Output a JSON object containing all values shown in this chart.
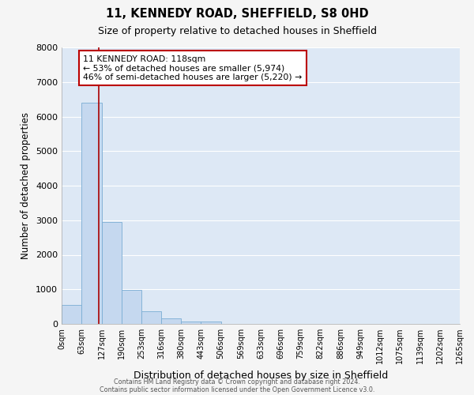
{
  "title": "11, KENNEDY ROAD, SHEFFIELD, S8 0HD",
  "subtitle": "Size of property relative to detached houses in Sheffield",
  "xlabel": "Distribution of detached houses by size in Sheffield",
  "ylabel": "Number of detached properties",
  "bar_color": "#c5d8ef",
  "bar_edge_color": "#7aadd4",
  "background_color": "#dde8f5",
  "grid_color": "#ffffff",
  "fig_background": "#f5f5f5",
  "bin_edges": [
    0,
    63,
    127,
    190,
    253,
    316,
    380,
    443,
    506,
    569,
    633,
    696,
    759,
    822,
    886,
    949,
    1012,
    1075,
    1139,
    1202,
    1265
  ],
  "bin_labels": [
    "0sqm",
    "63sqm",
    "127sqm",
    "190sqm",
    "253sqm",
    "316sqm",
    "380sqm",
    "443sqm",
    "506sqm",
    "569sqm",
    "633sqm",
    "696sqm",
    "759sqm",
    "822sqm",
    "886sqm",
    "949sqm",
    "1012sqm",
    "1075sqm",
    "1139sqm",
    "1202sqm",
    "1265sqm"
  ],
  "bar_heights": [
    550,
    6400,
    2950,
    975,
    360,
    155,
    70,
    60,
    0,
    0,
    0,
    0,
    0,
    0,
    0,
    0,
    0,
    0,
    0,
    0
  ],
  "property_size": 118,
  "vline_color": "#aa0000",
  "annotation_box_edge_color": "#bb0000",
  "annotation_text_line1": "11 KENNEDY ROAD: 118sqm",
  "annotation_text_line2": "← 53% of detached houses are smaller (5,974)",
  "annotation_text_line3": "46% of semi-detached houses are larger (5,220) →",
  "ylim": [
    0,
    8000
  ],
  "yticks": [
    0,
    1000,
    2000,
    3000,
    4000,
    5000,
    6000,
    7000,
    8000
  ],
  "footer_line1": "Contains HM Land Registry data © Crown copyright and database right 2024.",
  "footer_line2": "Contains public sector information licensed under the Open Government Licence v3.0."
}
